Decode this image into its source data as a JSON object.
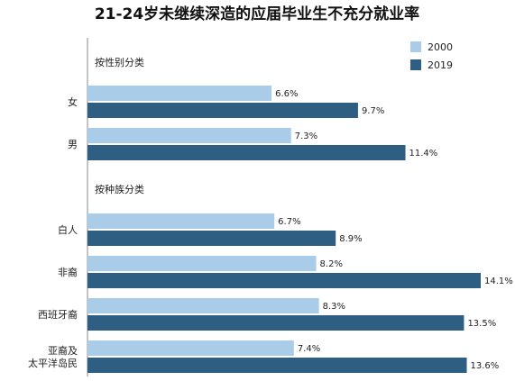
{
  "chart_data": {
    "type": "bar",
    "orientation": "horizontal",
    "title": "21-24岁未继续深造的应届毕业生不充分就业率",
    "legend_position": "top-right",
    "grid": false,
    "xlim": [
      0,
      14.1
    ],
    "value_suffix": "%",
    "series": [
      {
        "name": "2000",
        "color": "#a9cde9"
      },
      {
        "name": "2019",
        "color": "#2e5f82"
      }
    ],
    "groups": [
      {
        "label": "按性别分类",
        "categories": [
          {
            "label": [
              "女"
            ],
            "values": [
              6.6,
              9.7
            ]
          },
          {
            "label": [
              "男"
            ],
            "values": [
              7.3,
              11.4
            ]
          }
        ]
      },
      {
        "label": "按种族分类",
        "categories": [
          {
            "label": [
              "白人"
            ],
            "values": [
              6.7,
              8.9
            ]
          },
          {
            "label": [
              "非裔"
            ],
            "values": [
              8.2,
              14.1
            ]
          },
          {
            "label": [
              "西班牙裔"
            ],
            "values": [
              8.3,
              13.5
            ]
          },
          {
            "label": [
              "亚裔及",
              "太平洋岛民"
            ],
            "values": [
              7.4,
              13.6
            ]
          }
        ]
      }
    ]
  }
}
